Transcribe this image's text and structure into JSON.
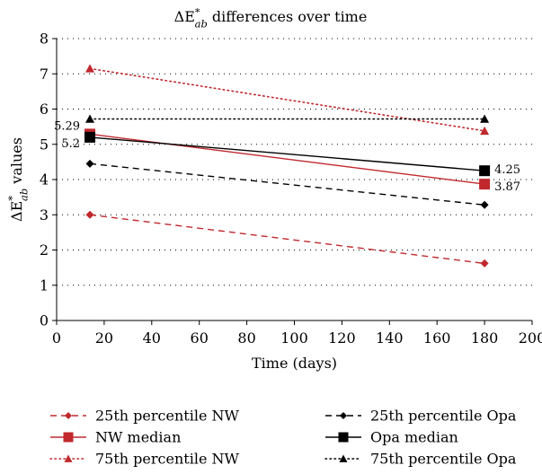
{
  "chart_data": {
    "type": "line",
    "title": "ΔE*ab differences over time",
    "title_parts": {
      "prefix": "ΔE",
      "sup": "*",
      "sub": "ab",
      "suffix": " differences over time"
    },
    "xlabel": "Time (days)",
    "ylabel": "ΔE*ab values",
    "ylabel_parts": {
      "prefix": "ΔE",
      "sup": "*",
      "sub": "ab",
      "suffix": " values"
    },
    "xlim": [
      0,
      200
    ],
    "ylim": [
      0,
      8
    ],
    "xticks": [
      "0",
      "20",
      "40",
      "60",
      "80",
      "100",
      "120",
      "140",
      "160",
      "180",
      "200"
    ],
    "yticks": [
      "0",
      "1",
      "2",
      "3",
      "4",
      "5",
      "6",
      "7",
      "8"
    ],
    "grid": "horizontal dotted",
    "legend_position": "bottom",
    "series": [
      {
        "name": "25th percentile NW",
        "x": [
          14,
          180
        ],
        "y": [
          3.0,
          1.62
        ],
        "color": "#c0282d",
        "line": "dashed",
        "marker": "diamond"
      },
      {
        "name": "25th percentile Opa",
        "x": [
          14,
          180
        ],
        "y": [
          4.45,
          3.28
        ],
        "color": "#000000",
        "line": "dashed",
        "marker": "diamond"
      },
      {
        "name": "NW median",
        "x": [
          14,
          180
        ],
        "y": [
          5.29,
          3.87
        ],
        "color": "#c0282d",
        "line": "solid",
        "marker": "square"
      },
      {
        "name": "Opa median",
        "x": [
          14,
          180
        ],
        "y": [
          5.2,
          4.25
        ],
        "color": "#000000",
        "line": "solid",
        "marker": "square"
      },
      {
        "name": "75th percentile NW",
        "x": [
          14,
          180
        ],
        "y": [
          7.15,
          5.38
        ],
        "color": "#c0282d",
        "line": "dotted",
        "marker": "triangle"
      },
      {
        "name": "75th percentile Opa",
        "x": [
          14,
          180
        ],
        "y": [
          5.72,
          5.72
        ],
        "color": "#000000",
        "line": "dotted",
        "marker": "triangle"
      }
    ],
    "annotations": [
      {
        "text": "5.29",
        "x": 14,
        "y": 5.29,
        "side": "left"
      },
      {
        "text": "5.2",
        "x": 14,
        "y": 5.2,
        "side": "left"
      },
      {
        "text": "4.25",
        "x": 180,
        "y": 4.25,
        "side": "right"
      },
      {
        "text": "3.87",
        "x": 180,
        "y": 3.87,
        "side": "right"
      }
    ]
  }
}
